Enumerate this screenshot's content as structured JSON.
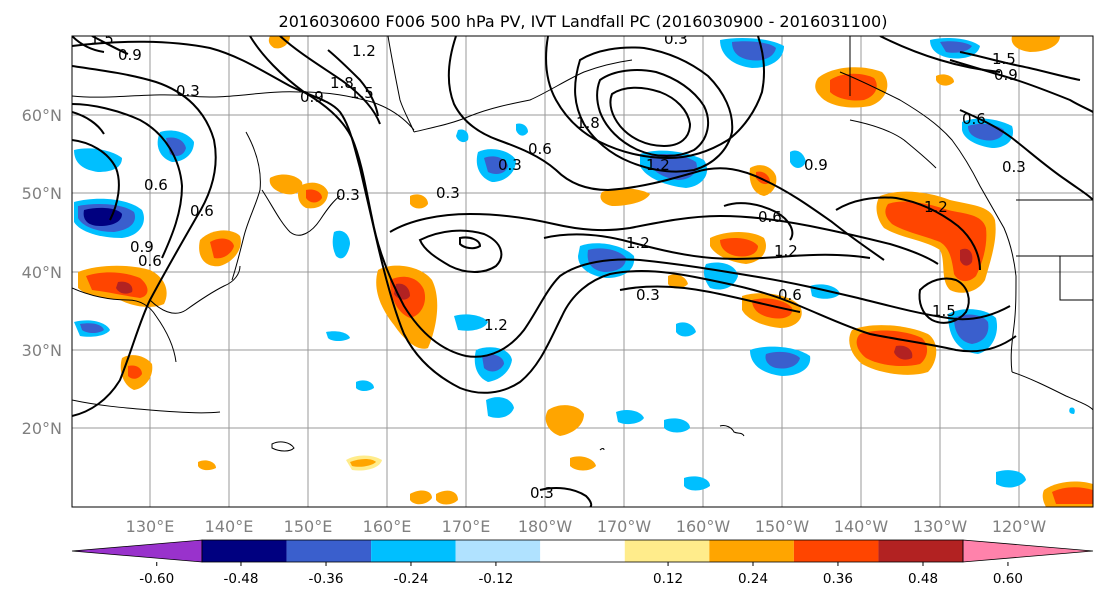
{
  "title": "2016030600 F006 500 hPa PV, IVT Landfall PC (2016030900 - 2016031100)",
  "lat_labels": [
    "60°N",
    "50°N",
    "40°N",
    "30°N",
    "20°N"
  ],
  "lon_labels": [
    "130°E",
    "140°E",
    "150°E",
    "160°E",
    "170°E",
    "180°W",
    "170°W",
    "160°W",
    "150°W",
    "140°W",
    "130°W",
    "120°W"
  ],
  "colorbar": {
    "levels": [
      "-0.60",
      "-0.48",
      "-0.36",
      "-0.24",
      "-0.12",
      "0.12",
      "0.24",
      "0.36",
      "0.48",
      "0.60"
    ],
    "colors": [
      "#9932cc",
      "#000080",
      "#3a5fcd",
      "#00bfff",
      "#b0e2ff",
      "#ffffff",
      "#ffec8b",
      "#ffa500",
      "#ff4500",
      "#b22222",
      "#ff82ab"
    ]
  },
  "contour_labels": [
    "0.9",
    "0.3",
    "1.8",
    "1.5",
    "1.2",
    "0.9",
    "0.6",
    "0.3",
    "0.6",
    "1.8",
    "1.2",
    "0.3",
    "0.9",
    "0.6",
    "0.3",
    "0.6",
    "1.2",
    "1.5",
    "1.2",
    "0.6",
    "0.3",
    "1.2",
    "1.2",
    "0.6",
    "0.9",
    "1.5",
    "0.3",
    "0.6",
    "0.9",
    "0.3",
    "0.3",
    "1.5"
  ]
}
